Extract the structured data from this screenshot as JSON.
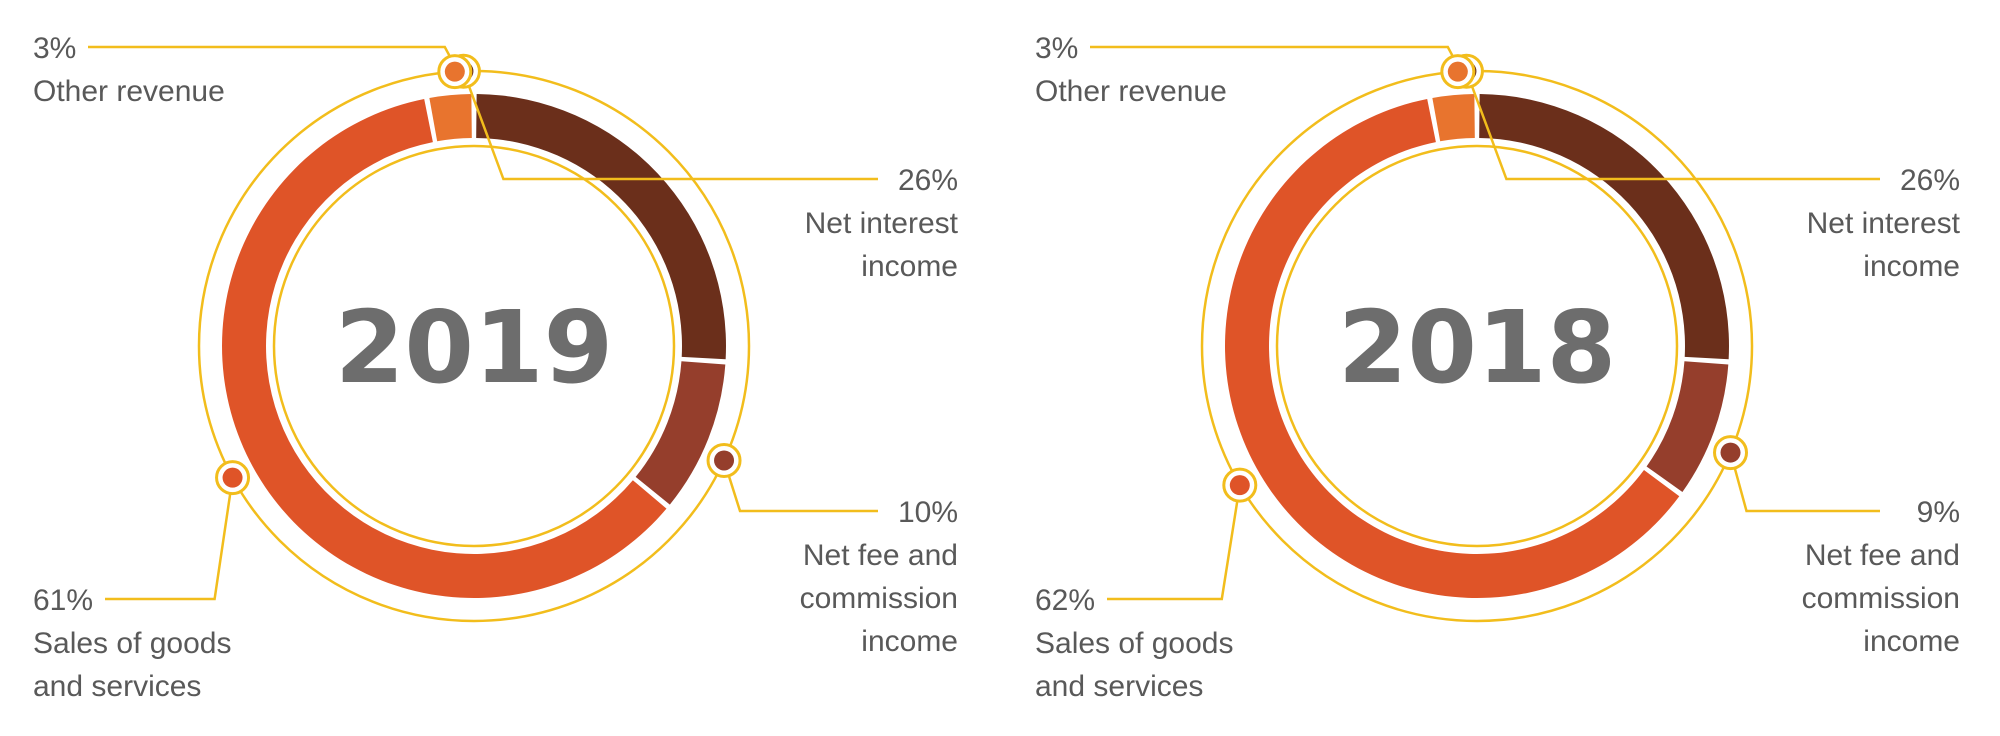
{
  "chart_data": [
    {
      "type": "pie",
      "title": "2019",
      "slices": [
        {
          "label_lines": [
            "Net interest",
            "income"
          ],
          "pct_text": "26%",
          "value": 26,
          "color": "#6b2f1b"
        },
        {
          "label_lines": [
            "Net fee and",
            "commission",
            "income"
          ],
          "pct_text": "10%",
          "value": 10,
          "color": "#953e2c"
        },
        {
          "label_lines": [
            "Sales of goods",
            "and services"
          ],
          "pct_text": "61%",
          "value": 61,
          "color": "#df5428"
        },
        {
          "label_lines": [
            "Other revenue"
          ],
          "pct_text": "3%",
          "value": 3,
          "color": "#e8742e"
        }
      ]
    },
    {
      "type": "pie",
      "title": "2018",
      "slices": [
        {
          "label_lines": [
            "Net interest",
            "income"
          ],
          "pct_text": "26%",
          "value": 26,
          "color": "#6b2f1b"
        },
        {
          "label_lines": [
            "Net fee and",
            "commission",
            "income"
          ],
          "pct_text": "9%",
          "value": 9,
          "color": "#953e2c"
        },
        {
          "label_lines": [
            "Sales of goods",
            "and services"
          ],
          "pct_text": "62%",
          "value": 62,
          "color": "#df5428"
        },
        {
          "label_lines": [
            "Other revenue"
          ],
          "pct_text": "3%",
          "value": 3,
          "color": "#e8742e"
        }
      ]
    }
  ],
  "colors": {
    "leader": "#f2bd1c",
    "text": "#595959",
    "year_text": "#6d6d6d"
  }
}
